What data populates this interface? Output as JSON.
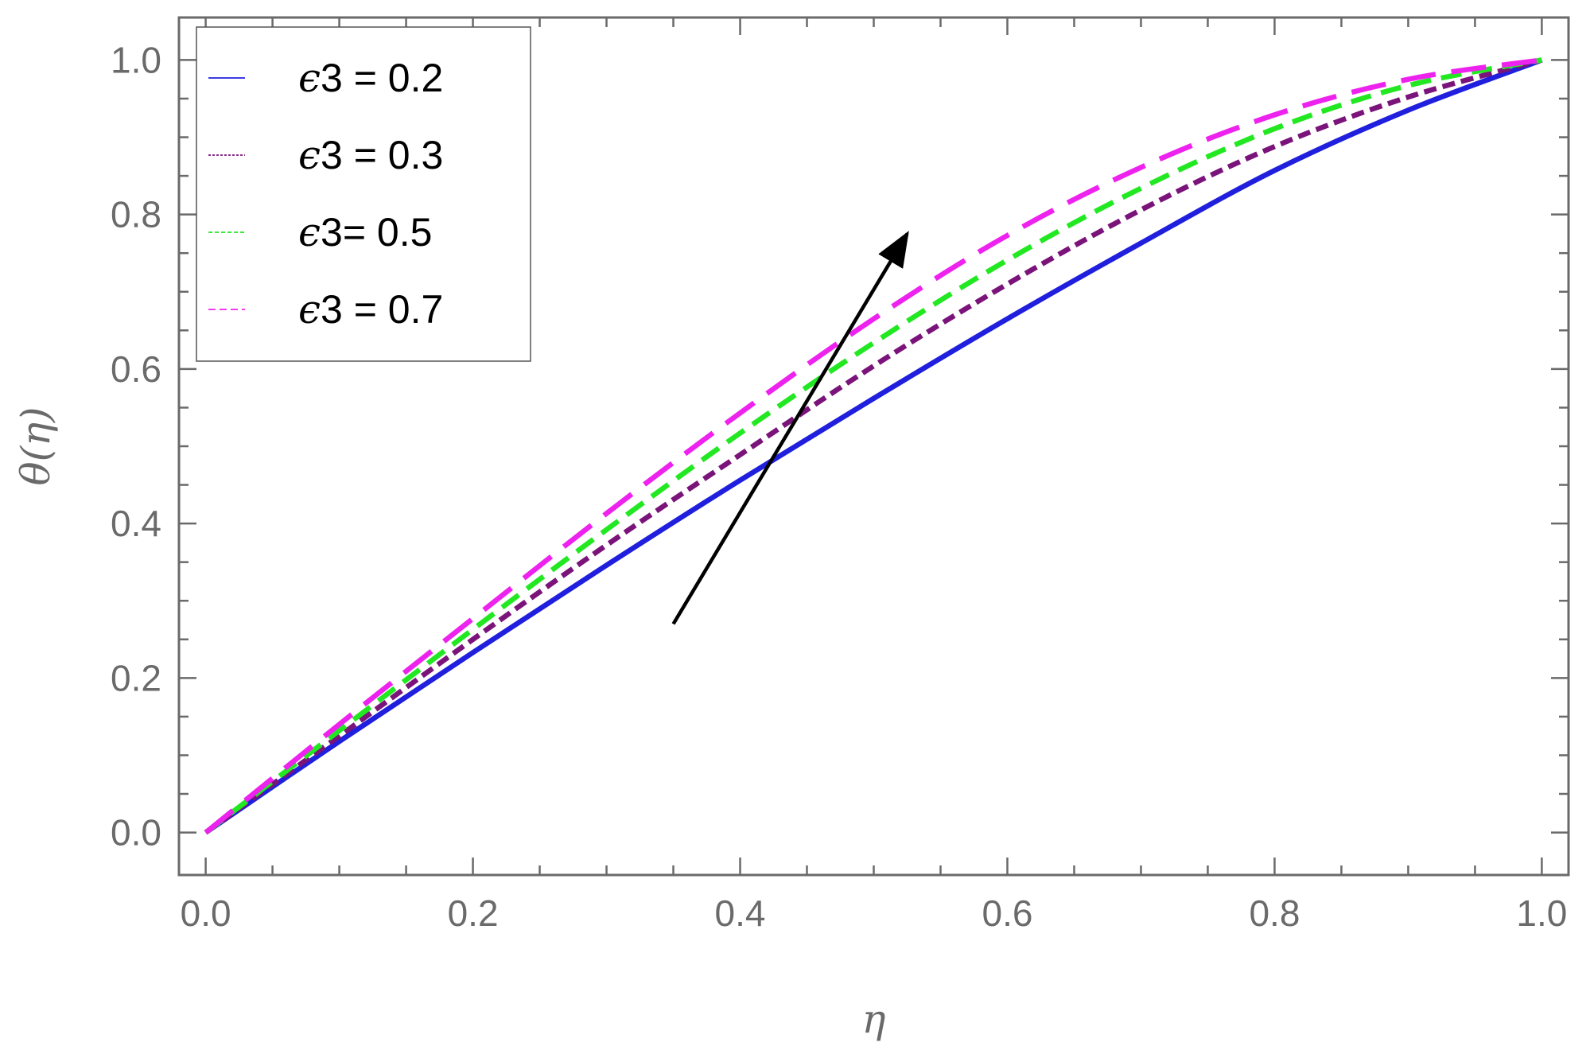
{
  "chart_data": {
    "type": "line",
    "title": "",
    "xlabel": "η",
    "ylabel": "θ(η)",
    "xlim": [
      -0.02,
      1.02
    ],
    "ylim": [
      -0.055,
      1.055
    ],
    "x_ticks": [
      "0.0",
      "0.2",
      "0.4",
      "0.6",
      "0.8",
      "1.0"
    ],
    "y_ticks": [
      "0.0",
      "0.2",
      "0.4",
      "0.6",
      "0.8",
      "1.0"
    ],
    "grid": false,
    "legend_position": "top-left",
    "x": [
      0.0,
      0.1,
      0.2,
      0.3,
      0.4,
      0.5,
      0.6,
      0.7,
      0.8,
      0.9,
      1.0
    ],
    "series": [
      {
        "name": "ϵ3 = 0.2",
        "legend_label": {
          "eps": "ϵ",
          "rest": "3 = 0.2"
        },
        "color": "#1f1fdd",
        "dash": "solid",
        "values": [
          0.0,
          0.118,
          0.233,
          0.346,
          0.456,
          0.562,
          0.665,
          0.763,
          0.857,
          0.935,
          1.0
        ]
      },
      {
        "name": "ϵ3 = 0.3",
        "legend_label": {
          "eps": "ϵ",
          "rest": "3 = 0.3"
        },
        "color": "#7a137a",
        "dash": "short",
        "values": [
          0.0,
          0.125,
          0.25,
          0.372,
          0.489,
          0.604,
          0.71,
          0.806,
          0.888,
          0.952,
          1.0
        ]
      },
      {
        "name": "ϵ3= 0.5",
        "legend_label": {
          "eps": "ϵ",
          "rest": "3= 0.5"
        },
        "color": "#22e822",
        "dash": "medium",
        "values": [
          0.0,
          0.132,
          0.263,
          0.392,
          0.517,
          0.634,
          0.741,
          0.834,
          0.911,
          0.967,
          1.0
        ]
      },
      {
        "name": "ϵ3 = 0.7",
        "legend_label": {
          "eps": "ϵ",
          "rest": "3 = 0.7"
        },
        "color": "#ee22ee",
        "dash": "long",
        "values": [
          0.0,
          0.14,
          0.277,
          0.413,
          0.543,
          0.665,
          0.773,
          0.861,
          0.929,
          0.975,
          1.0
        ]
      }
    ],
    "annotations": [
      {
        "type": "arrow",
        "from": [
          0.35,
          0.27
        ],
        "to": [
          0.525,
          0.775
        ],
        "color": "#000000"
      }
    ]
  }
}
